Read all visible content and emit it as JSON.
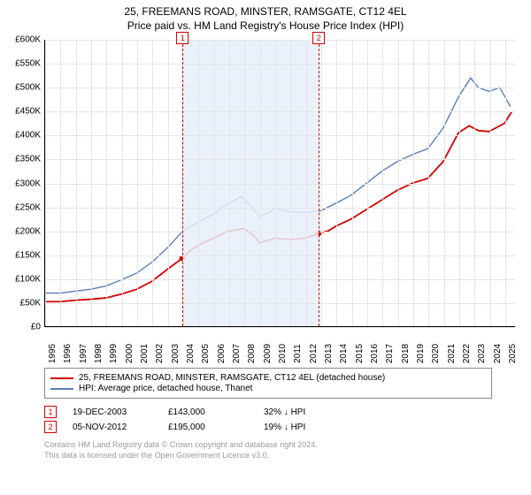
{
  "title": {
    "line1": "25, FREEMANS ROAD, MINSTER, RAMSGATE, CT12 4EL",
    "line2": "Price paid vs. HM Land Registry's House Price Index (HPI)",
    "fontsize": 12,
    "color": "#000000"
  },
  "chart": {
    "type": "line",
    "background_color": "#ffffff",
    "grid_color": "#e5e5e5",
    "axis_color": "#000000",
    "x": {
      "min": 1995,
      "max": 2025.7,
      "ticks": [
        1995,
        1996,
        1997,
        1998,
        1999,
        2000,
        2001,
        2002,
        2003,
        2004,
        2005,
        2006,
        2007,
        2008,
        2009,
        2010,
        2011,
        2012,
        2013,
        2014,
        2015,
        2016,
        2017,
        2018,
        2019,
        2020,
        2021,
        2022,
        2023,
        2024,
        2025
      ],
      "label_fontsize": 10
    },
    "y": {
      "min": 0,
      "max": 600000,
      "tick_step": 50000,
      "tick_prefix": "£",
      "tick_suffix": "K",
      "label_fontsize": 10
    },
    "band": {
      "start": 2003.97,
      "end": 2012.85,
      "fill": "#e8eef9",
      "opacity": 0.85
    },
    "markers": [
      {
        "n": "1",
        "x": 2003.97,
        "y": 143000,
        "color": "#d40000"
      },
      {
        "n": "2",
        "x": 2012.85,
        "y": 195000,
        "color": "#d40000"
      }
    ],
    "marker_dash_color": "#d40000",
    "series": [
      {
        "name": "25, FREEMANS ROAD, MINSTER, RAMSGATE, CT12 4EL (detached house)",
        "color": "#d40000",
        "width": 1.8,
        "points": [
          [
            1995,
            52000
          ],
          [
            1996,
            52000
          ],
          [
            1997,
            55000
          ],
          [
            1998,
            57000
          ],
          [
            1999,
            60000
          ],
          [
            2000,
            68000
          ],
          [
            2001,
            78000
          ],
          [
            2002,
            95000
          ],
          [
            2003,
            120000
          ],
          [
            2003.97,
            143000
          ],
          [
            2004.5,
            160000
          ],
          [
            2005,
            170000
          ],
          [
            2006,
            185000
          ],
          [
            2007,
            200000
          ],
          [
            2008,
            205000
          ],
          [
            2008.7,
            188000
          ],
          [
            2009,
            175000
          ],
          [
            2010,
            185000
          ],
          [
            2011,
            182000
          ],
          [
            2012,
            185000
          ],
          [
            2012.85,
            195000
          ],
          [
            2013.5,
            200000
          ],
          [
            2014,
            210000
          ],
          [
            2015,
            225000
          ],
          [
            2016,
            245000
          ],
          [
            2017,
            265000
          ],
          [
            2018,
            285000
          ],
          [
            2019,
            300000
          ],
          [
            2020,
            310000
          ],
          [
            2021,
            345000
          ],
          [
            2022,
            405000
          ],
          [
            2022.7,
            420000
          ],
          [
            2023.3,
            410000
          ],
          [
            2024,
            408000
          ],
          [
            2025,
            425000
          ],
          [
            2025.5,
            450000
          ]
        ]
      },
      {
        "name": "HPI: Average price, detached house, Thanet",
        "color": "#5b7fb5",
        "width": 1.4,
        "points": [
          [
            1995,
            70000
          ],
          [
            1996,
            70000
          ],
          [
            1997,
            74000
          ],
          [
            1998,
            78000
          ],
          [
            1999,
            85000
          ],
          [
            2000,
            98000
          ],
          [
            2001,
            112000
          ],
          [
            2002,
            135000
          ],
          [
            2003,
            165000
          ],
          [
            2004,
            200000
          ],
          [
            2005,
            218000
          ],
          [
            2006,
            235000
          ],
          [
            2007,
            258000
          ],
          [
            2007.8,
            272000
          ],
          [
            2008.5,
            250000
          ],
          [
            2009,
            230000
          ],
          [
            2009.7,
            240000
          ],
          [
            2010,
            248000
          ],
          [
            2011,
            240000
          ],
          [
            2012,
            238000
          ],
          [
            2013,
            242000
          ],
          [
            2014,
            258000
          ],
          [
            2015,
            275000
          ],
          [
            2016,
            300000
          ],
          [
            2017,
            325000
          ],
          [
            2018,
            345000
          ],
          [
            2019,
            360000
          ],
          [
            2020,
            372000
          ],
          [
            2021,
            415000
          ],
          [
            2022,
            480000
          ],
          [
            2022.8,
            520000
          ],
          [
            2023.3,
            500000
          ],
          [
            2024,
            492000
          ],
          [
            2024.7,
            500000
          ],
          [
            2025.4,
            460000
          ]
        ]
      }
    ]
  },
  "legend": {
    "border_color": "#888888",
    "fontsize": 10,
    "items": [
      {
        "label": "25, FREEMANS ROAD, MINSTER, RAMSGATE, CT12 4EL (detached house)",
        "color": "#d40000"
      },
      {
        "label": "HPI: Average price, detached house, Thanet",
        "color": "#5b7fb5"
      }
    ]
  },
  "sales": {
    "fontsize": 10,
    "rows": [
      {
        "n": "1",
        "date": "19-DEC-2003",
        "price": "£143,000",
        "diff": "32% ↓ HPI",
        "color": "#d40000"
      },
      {
        "n": "2",
        "date": "05-NOV-2012",
        "price": "£195,000",
        "diff": "19% ↓ HPI",
        "color": "#d40000"
      }
    ]
  },
  "attribution": {
    "line1": "Contains HM Land Registry data © Crown copyright and database right 2024.",
    "line2": "This data is licensed under the Open Government Licence v3.0.",
    "color": "#9a9a9a",
    "fontsize": 9
  }
}
